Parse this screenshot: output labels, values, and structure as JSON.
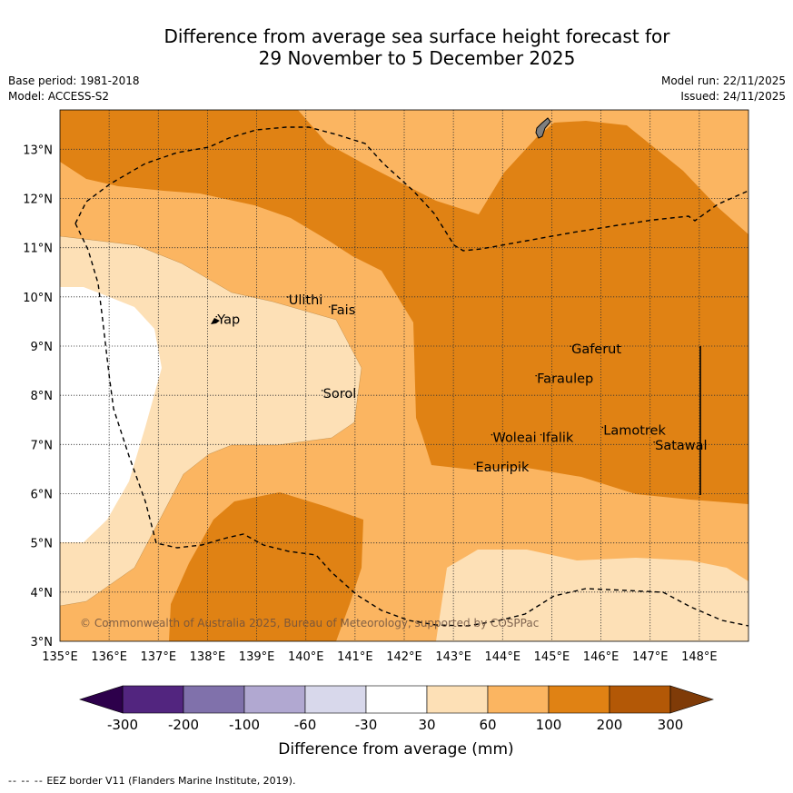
{
  "title": {
    "line1": "Difference from average sea surface height forecast for",
    "line2": "29 November to 5 December 2025"
  },
  "meta": {
    "base_period": "Base period: 1981-2018",
    "model": "Model: ACCESS-S2",
    "model_run": "Model run: 22/11/2025",
    "issued": "Issued: 24/11/2025"
  },
  "axes": {
    "lon_labels": [
      "135°E",
      "136°E",
      "137°E",
      "138°E",
      "139°E",
      "140°E",
      "141°E",
      "142°E",
      "143°E",
      "144°E",
      "145°E",
      "146°E",
      "147°E",
      "148°E"
    ],
    "lat_labels": [
      "3°N",
      "4°N",
      "5°N",
      "6°N",
      "7°N",
      "8°N",
      "9°N",
      "10°N",
      "11°N",
      "12°N",
      "13°N"
    ]
  },
  "places": [
    {
      "name": "Yap",
      "lon": 138.2,
      "lat": 9.45
    },
    {
      "name": "Ulithi",
      "lon": 139.65,
      "lat": 9.85
    },
    {
      "name": "Fais",
      "lon": 140.5,
      "lat": 9.65
    },
    {
      "name": "Sorol",
      "lon": 140.35,
      "lat": 7.95
    },
    {
      "name": "Gaferut",
      "lon": 145.4,
      "lat": 8.85
    },
    {
      "name": "Faraulep",
      "lon": 144.7,
      "lat": 8.25
    },
    {
      "name": "Woleai",
      "lon": 143.8,
      "lat": 7.05
    },
    {
      "name": "Ifalik",
      "lon": 144.8,
      "lat": 7.05
    },
    {
      "name": "Lamotrek",
      "lon": 146.05,
      "lat": 7.2
    },
    {
      "name": "Satawal",
      "lon": 147.1,
      "lat": 6.9
    },
    {
      "name": "Eauripik",
      "lon": 143.45,
      "lat": 6.45
    }
  ],
  "copyright": "© Commonwealth of Australia 2025, Bureau of Meteorology, supported by COSPPac",
  "colorbar": {
    "ticks": [
      "-300",
      "-200",
      "-100",
      "-60",
      "-30",
      "30",
      "60",
      "100",
      "200",
      "300"
    ],
    "label": "Difference from average (mm)",
    "colors": [
      "#52257f",
      "#8071ab",
      "#b1a8d1",
      "#d8d8eb",
      "#ffffff",
      "#fde0b6",
      "#fbb561",
      "#e08214",
      "#b35806"
    ],
    "under_color": "#2d004b",
    "over_color": "#7f3b08"
  },
  "colors": {
    "c30_60": "#fde0b6",
    "c60_100": "#fbb561",
    "c100_200": "#e08214",
    "neutral": "#ffffff",
    "land": "#7f7f7f"
  },
  "footer": {
    "dash": "-- -- --",
    "text": "EEZ border V11 (Flanders Marine Institute, 2019)."
  }
}
